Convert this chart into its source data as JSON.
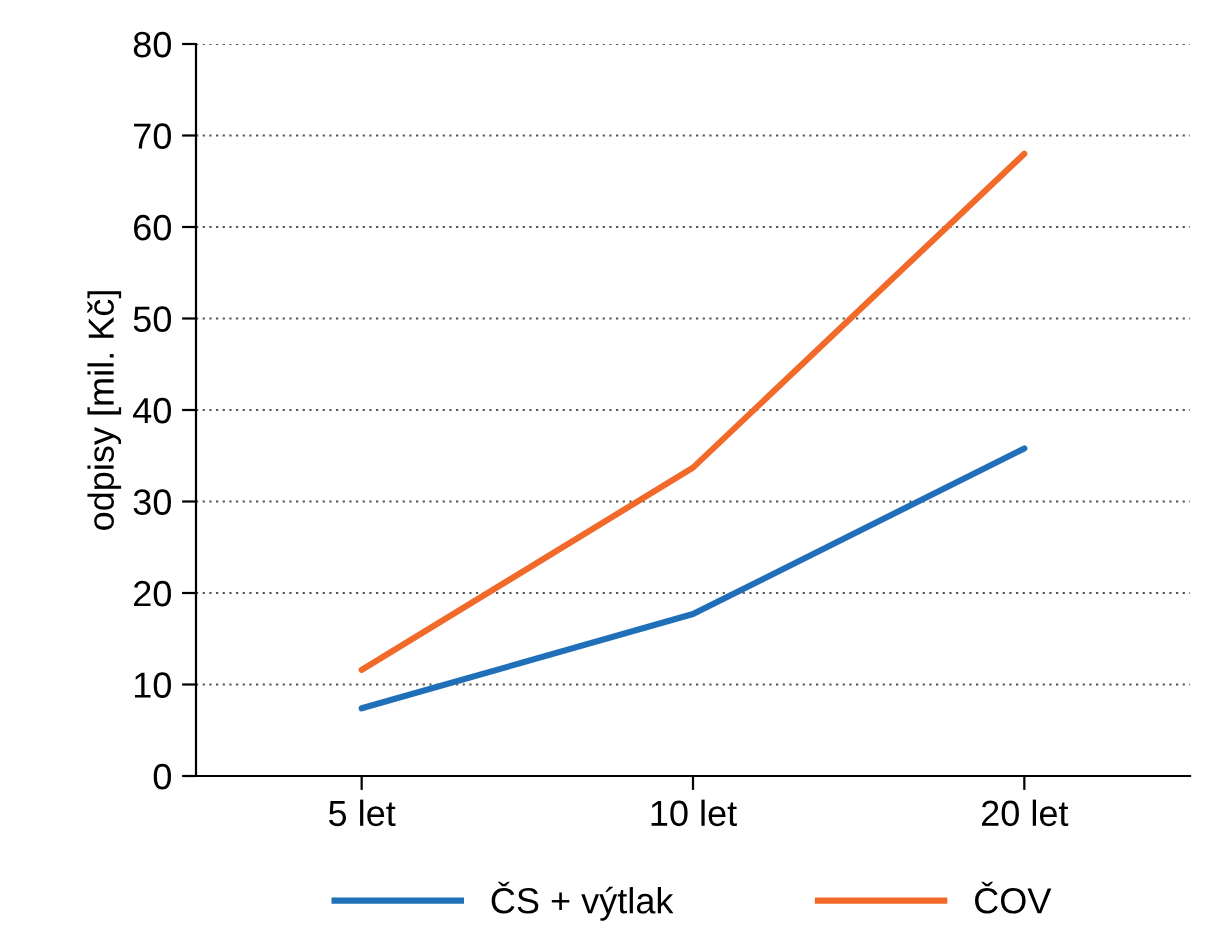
{
  "chart_data": {
    "type": "line",
    "ylabel": "odpisy [mil. Kč]",
    "categories": [
      "5 let",
      "10 let",
      "20 let"
    ],
    "series": [
      {
        "name": "ČS + výtlak",
        "color": "#1f6fb9",
        "values": [
          7.4,
          17.7,
          35.8
        ]
      },
      {
        "name": "ČOV",
        "color": "#f26a2a",
        "values": [
          11.6,
          33.7,
          68.0
        ]
      }
    ],
    "ylim": [
      0,
      80
    ],
    "yticks": [
      0,
      10,
      20,
      30,
      40,
      50,
      60,
      70,
      80
    ],
    "grid": "y",
    "legend": "bottom",
    "line_style": "solid",
    "marker": "none"
  }
}
